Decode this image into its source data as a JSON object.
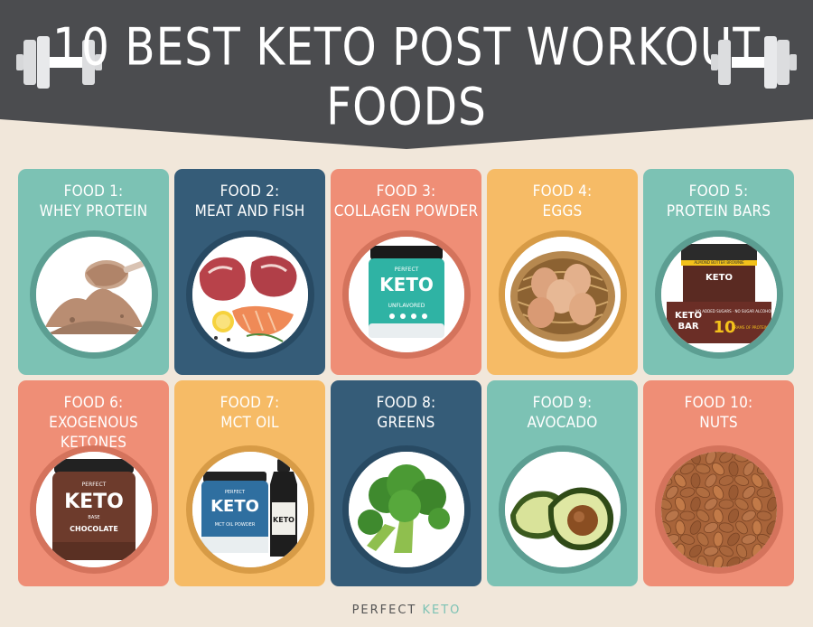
{
  "header": {
    "title": "10 BEST KETO POST WORKOUT FOODS",
    "bg_color": "#4b4c4f"
  },
  "cards": [
    {
      "number": "FOOD 1:",
      "name": "WHEY PROTEIN",
      "color": "teal",
      "image": "protein-powder-scoop-icon"
    },
    {
      "number": "FOOD 2:",
      "name": "MEAT AND FISH",
      "color": "navy",
      "image": "steak-and-salmon-icon"
    },
    {
      "number": "FOOD 3:",
      "name": "COLLAGEN POWDER",
      "color": "salmon",
      "image": "collagen-tub-icon"
    },
    {
      "number": "FOOD 4:",
      "name": "EGGS",
      "color": "mustard",
      "image": "egg-basket-icon"
    },
    {
      "number": "FOOD 5:",
      "name": "PROTEIN BARS",
      "color": "teal",
      "image": "keto-bar-box-icon"
    },
    {
      "number": "FOOD 6:",
      "name": "EXOGENOUS KETONES",
      "color": "salmon",
      "image": "chocolate-keto-tub-icon"
    },
    {
      "number": "FOOD 7:",
      "name": "MCT OIL",
      "color": "mustard",
      "image": "mct-oil-bottle-icon"
    },
    {
      "number": "FOOD 8:",
      "name": "GREENS",
      "color": "navy",
      "image": "broccoli-icon"
    },
    {
      "number": "FOOD 9:",
      "name": "AVOCADO",
      "color": "teal",
      "image": "avocado-icon"
    },
    {
      "number": "FOOD 10:",
      "name": "NUTS",
      "color": "salmon",
      "image": "almonds-icon"
    }
  ],
  "products": {
    "brand_top": "PERFECT",
    "brand_keto": "KETO",
    "collagen_flavor": "UNFLAVORED",
    "bar_flavor": "ALMOND BUTTER BROWNIE",
    "bar_grams": "10",
    "bar_protein": "GRAMS OF PROTEIN",
    "bar_claims": "NO ADDED SUGARS · NO SUGAR ALCOHOLS",
    "chocolate_base": "BASE",
    "chocolate_flavor": "CHOCOLATE",
    "mct_label": "MCT OIL POWDER"
  },
  "footer": {
    "brand_a": "PERFECT ",
    "brand_b": "KETO"
  },
  "colors": {
    "background": "#f1e7da",
    "teal": "#7cc2b4",
    "navy": "#355c78",
    "salmon": "#ef8e76",
    "mustard": "#f6bb66"
  }
}
